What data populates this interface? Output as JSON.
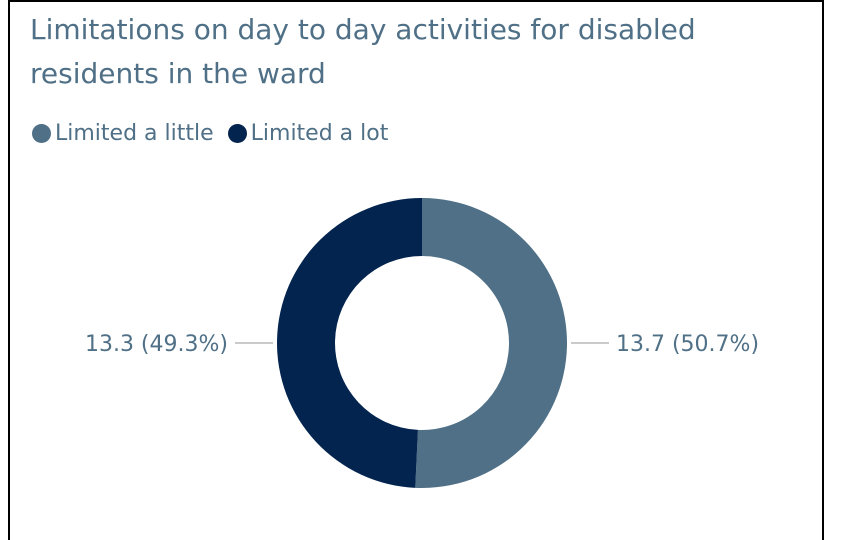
{
  "chart_data": {
    "type": "pie",
    "title": "Limitations on day to day activities for disabled residents in the ward",
    "legend_position": "top-left",
    "series": [
      {
        "name": "Limited a little",
        "value": 13.7,
        "percent": 50.7,
        "label": "13.7 (50.7%)",
        "color": "#4f7086"
      },
      {
        "name": "Limited a lot",
        "value": 13.3,
        "percent": 49.3,
        "label": "13.3 (49.3%)",
        "color": "#03244f"
      }
    ]
  },
  "colors": {
    "title": "#4f7086",
    "leader": "#b8b8b8",
    "label": "#4f7086"
  }
}
